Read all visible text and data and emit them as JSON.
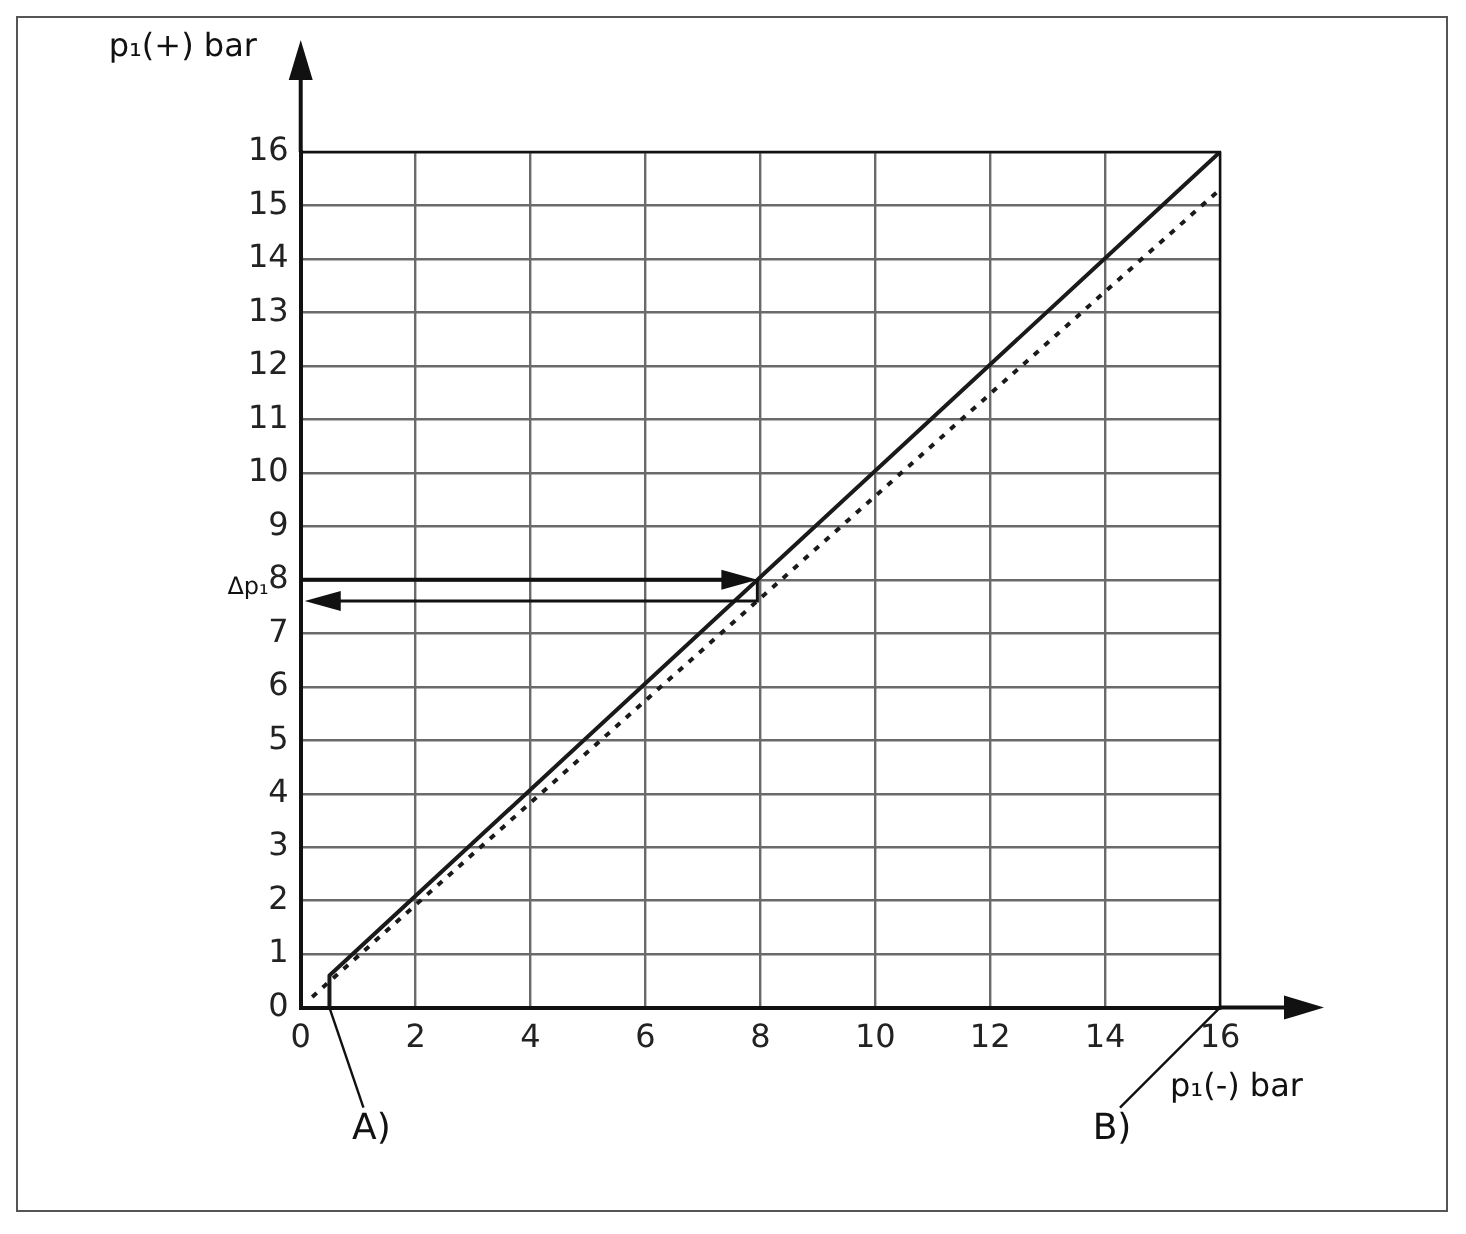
{
  "chart_data": {
    "type": "line",
    "xlabel": "p₁(-) bar",
    "ylabel": "p₁(+) bar",
    "xlim": [
      0,
      16
    ],
    "ylim": [
      0,
      16
    ],
    "xticks": [
      0,
      2,
      4,
      6,
      8,
      10,
      12,
      14,
      16
    ],
    "yticks": [
      0,
      1,
      2,
      3,
      4,
      5,
      6,
      7,
      8,
      9,
      10,
      11,
      12,
      13,
      14,
      15,
      16
    ],
    "grid": true,
    "legend": false,
    "marker": "none",
    "series": [
      {
        "color": "#1a1a1a",
        "line_style": "solid",
        "x": [
          0.5,
          0.5,
          16
        ],
        "values": [
          0,
          0.6,
          16
        ]
      },
      {
        "color": "#1a1a1a",
        "line_style": "dotted",
        "x": [
          0.2,
          16
        ],
        "values": [
          0.2,
          15.3
        ]
      }
    ],
    "ref_lines": [
      {
        "axis": "y",
        "value": 8,
        "label": "Δp₁",
        "color": "#111111"
      }
    ],
    "annotations": [
      {
        "text": "A)",
        "x": 0.5,
        "y": 0
      },
      "B)"
    ]
  }
}
